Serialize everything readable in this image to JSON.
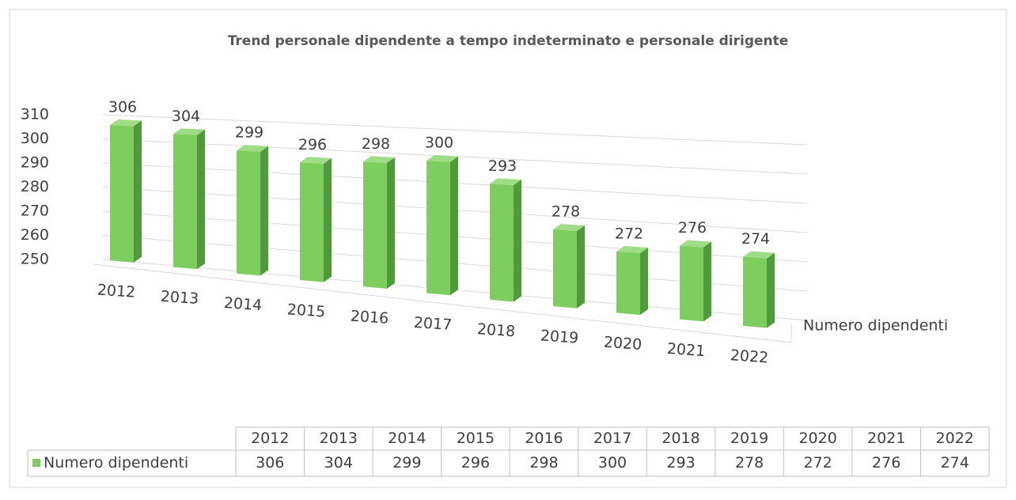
{
  "chart_data": {
    "type": "bar",
    "title": "Trend personale dipendente a tempo indeterminato e personale dirigente",
    "categories": [
      "2012",
      "2013",
      "2014",
      "2015",
      "2016",
      "2017",
      "2018",
      "2019",
      "2020",
      "2021",
      "2022"
    ],
    "series": [
      {
        "name": "Numero dipendenti",
        "color": "#7dcd5f",
        "values": [
          306,
          304,
          299,
          296,
          298,
          300,
          293,
          278,
          272,
          276,
          274
        ]
      }
    ],
    "ylim": [
      250,
      310
    ],
    "yticks": [
      250,
      260,
      270,
      280,
      290,
      300,
      310
    ],
    "grid": true
  }
}
